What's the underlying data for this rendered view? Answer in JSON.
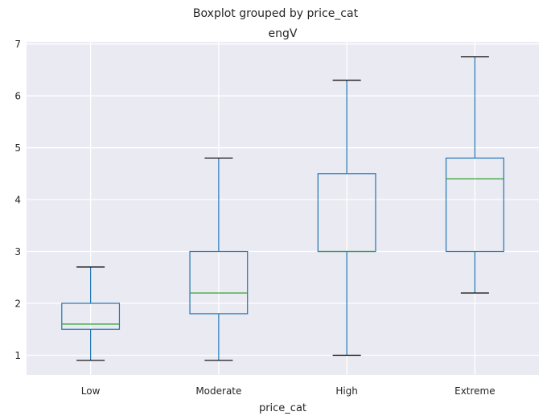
{
  "chart_data": {
    "type": "box",
    "suptitle": "Boxplot grouped by price_cat",
    "title": "engV",
    "xlabel": "price_cat",
    "ylabel": "",
    "categories": [
      "Low",
      "Moderate",
      "High",
      "Extreme"
    ],
    "ylim": [
      0.62,
      7.04
    ],
    "yticks": [
      1,
      2,
      3,
      4,
      5,
      6,
      7
    ],
    "grid": true,
    "boxes": [
      {
        "category": "Low",
        "whisker_low": 0.9,
        "q1": 1.5,
        "median": 1.6,
        "q3": 2.0,
        "whisker_high": 2.7
      },
      {
        "category": "Moderate",
        "whisker_low": 0.9,
        "q1": 1.8,
        "median": 2.2,
        "q3": 3.0,
        "whisker_high": 4.8
      },
      {
        "category": "High",
        "whisker_low": 1.0,
        "q1": 3.0,
        "median": 3.0,
        "q3": 4.5,
        "whisker_high": 6.3
      },
      {
        "category": "Extreme",
        "whisker_low": 2.2,
        "q1": 3.0,
        "median": 4.4,
        "q3": 4.8,
        "whisker_high": 6.75
      }
    ],
    "colors": {
      "background": "#eaeaf2",
      "grid": "#ffffff",
      "box": "#1f77b4",
      "median": "#2ca02c",
      "cap": "#000000",
      "text": "#262626"
    }
  }
}
